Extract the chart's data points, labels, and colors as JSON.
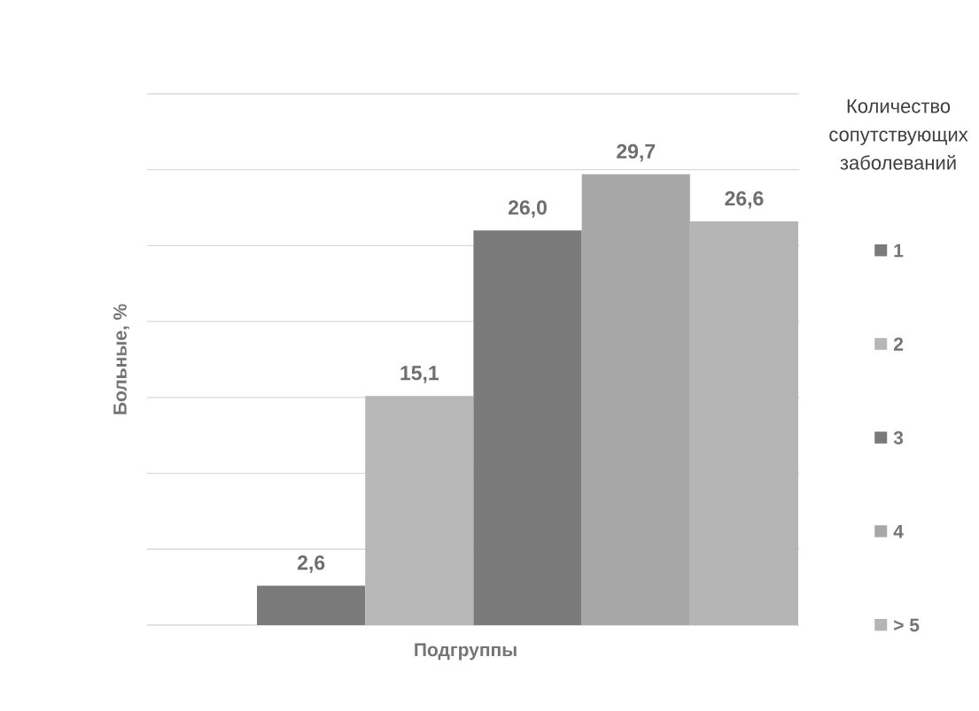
{
  "chart_data": {
    "type": "bar",
    "xlabel": "Подгруппы",
    "ylabel": "Больные, %",
    "legend_title": "Количество сопутствующих заболеваний",
    "categories": [
      null
    ],
    "series": [
      {
        "name": "1",
        "color": "#7a7a7a",
        "values": [
          2.6
        ],
        "value_labels": [
          "2,6"
        ]
      },
      {
        "name": "2",
        "color": "#b7b7b7",
        "values": [
          15.1
        ],
        "value_labels": [
          "15,1"
        ]
      },
      {
        "name": "3",
        "color": "#7a7a7a",
        "values": [
          26.0
        ],
        "value_labels": [
          "26,0"
        ]
      },
      {
        "name": "4",
        "color": "#a7a7a7",
        "values": [
          29.7
        ],
        "value_labels": [
          "29,7"
        ]
      },
      {
        "name": "> 5",
        "color": "#b5b5b5",
        "values": [
          26.6
        ],
        "value_labels": [
          "26,6"
        ]
      }
    ],
    "ylim": [
      0,
      35
    ],
    "yticks": [
      {
        "value": 0,
        "label": null
      },
      {
        "value": 5,
        "label": null
      },
      {
        "value": 10,
        "label": null
      },
      {
        "value": 15,
        "label": null
      },
      {
        "value": 20,
        "label": null
      },
      {
        "value": 25,
        "label": null
      },
      {
        "value": 30,
        "label": null
      },
      {
        "value": 35,
        "label": null
      }
    ],
    "grid": "y",
    "legend": "right"
  }
}
